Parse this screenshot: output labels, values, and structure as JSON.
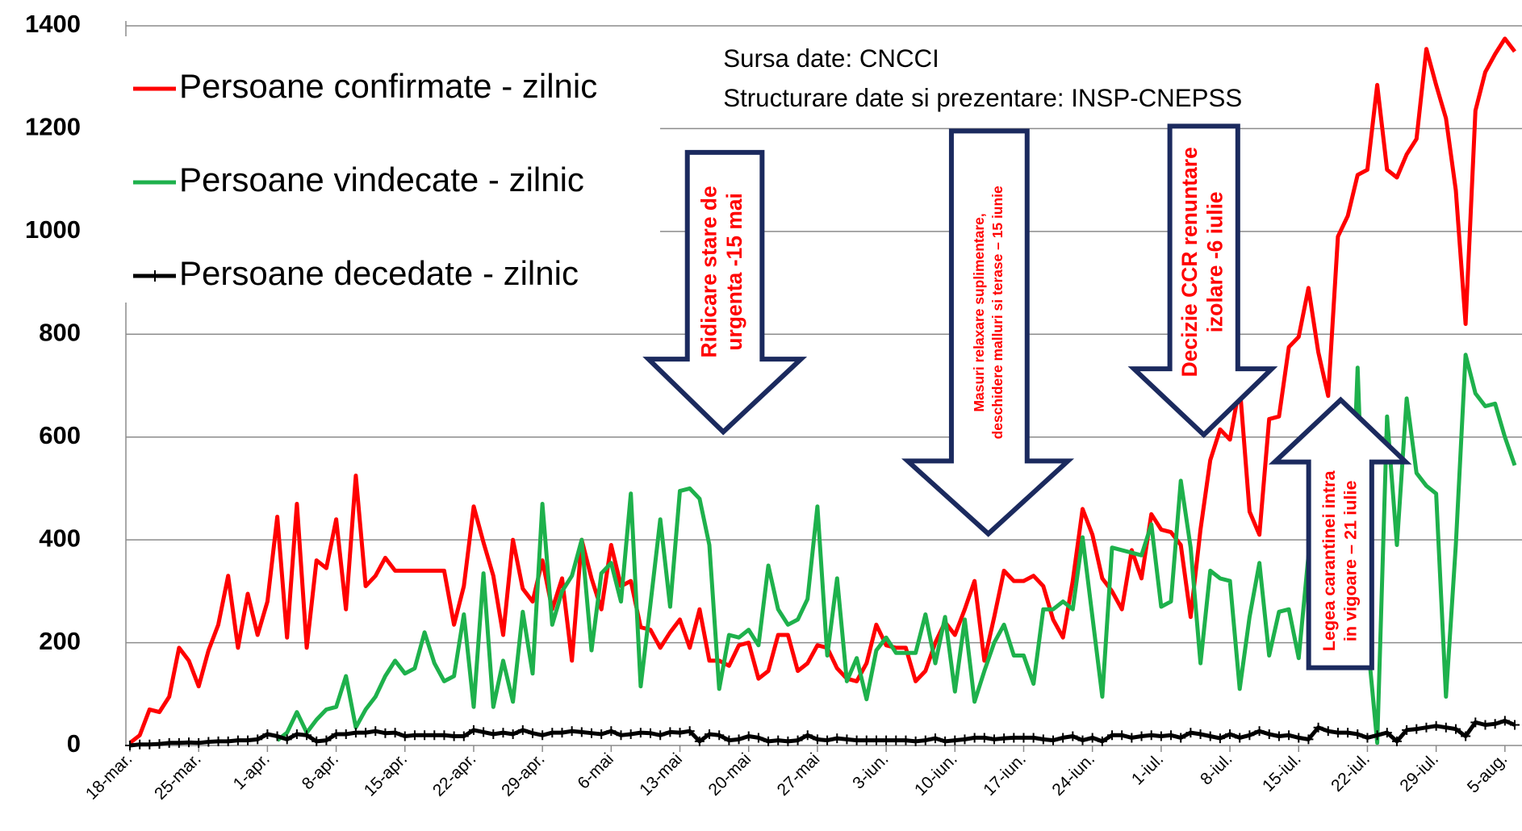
{
  "chart_data": {
    "type": "line",
    "categories": [
      "18-mar.",
      null,
      null,
      null,
      null,
      null,
      null,
      "25-mar.",
      null,
      null,
      null,
      null,
      null,
      null,
      "1-apr.",
      null,
      null,
      null,
      null,
      null,
      null,
      "8-apr.",
      null,
      null,
      null,
      null,
      null,
      null,
      "15-apr.",
      null,
      null,
      null,
      null,
      null,
      null,
      "22-apr.",
      null,
      null,
      null,
      null,
      null,
      null,
      "29-apr.",
      null,
      null,
      null,
      null,
      null,
      null,
      "6-mai",
      null,
      null,
      null,
      null,
      null,
      null,
      "13-mai",
      null,
      null,
      null,
      null,
      null,
      null,
      "20-mai",
      null,
      null,
      null,
      null,
      null,
      null,
      "27-mai",
      null,
      null,
      null,
      null,
      null,
      null,
      "3-iun.",
      null,
      null,
      null,
      null,
      null,
      null,
      "10-iun.",
      null,
      null,
      null,
      null,
      null,
      null,
      "17-iun.",
      null,
      null,
      null,
      null,
      null,
      null,
      "24-iun.",
      null,
      null,
      null,
      null,
      null,
      null,
      "1-iul.",
      null,
      null,
      null,
      null,
      null,
      null,
      "8-iul.",
      null,
      null,
      null,
      null,
      null,
      null,
      "15-iul.",
      null,
      null,
      null,
      null,
      null,
      null,
      "22-iul.",
      null,
      null,
      null,
      null,
      null,
      null,
      "29-iul.",
      null,
      null,
      null,
      null,
      null,
      null,
      "5-aug.",
      null
    ],
    "series": [
      {
        "name": "Persoane confirmate - zilnic",
        "color": "#ff0000",
        "marker": "none",
        "values": [
          5,
          20,
          70,
          65,
          95,
          190,
          165,
          115,
          185,
          235,
          330,
          190,
          295,
          215,
          280,
          445,
          210,
          470,
          190,
          360,
          345,
          440,
          265,
          525,
          310,
          330,
          365,
          340,
          340,
          340,
          340,
          340,
          340,
          235,
          310,
          465,
          395,
          330,
          215,
          400,
          305,
          280,
          360,
          265,
          325,
          165,
          400,
          325,
          265,
          390,
          310,
          320,
          230,
          225,
          190,
          220,
          245,
          190,
          265,
          165,
          165,
          155,
          195,
          200,
          130,
          145,
          215,
          215,
          145,
          160,
          195,
          190,
          150,
          130,
          125,
          160,
          235,
          195,
          190,
          190,
          125,
          145,
          200,
          240,
          215,
          265,
          320,
          165,
          250,
          340,
          320,
          320,
          330,
          310,
          245,
          210,
          320,
          460,
          410,
          325,
          300,
          265,
          380,
          325,
          450,
          420,
          415,
          390,
          250,
          420,
          555,
          615,
          595,
          700,
          455,
          410,
          635,
          640,
          775,
          795,
          890,
          765,
          680,
          990,
          1030,
          1110,
          1120,
          1285,
          1120,
          1105,
          1150,
          1180,
          1355,
          1285,
          1220,
          1080,
          820,
          1235,
          1310,
          1345,
          1375,
          1350
        ]
      },
      {
        "name": "Persoane vindecate - zilnic",
        "color": "#1eb14c",
        "marker": "none",
        "values": [
          null,
          null,
          null,
          null,
          null,
          null,
          null,
          null,
          null,
          null,
          null,
          null,
          null,
          null,
          null,
          10,
          25,
          65,
          25,
          50,
          70,
          75,
          135,
          35,
          70,
          95,
          135,
          165,
          140,
          150,
          220,
          160,
          125,
          135,
          255,
          75,
          335,
          75,
          165,
          85,
          260,
          140,
          470,
          235,
          300,
          330,
          400,
          185,
          335,
          355,
          280,
          490,
          115,
          275,
          440,
          270,
          495,
          500,
          480,
          390,
          110,
          215,
          210,
          225,
          195,
          350,
          265,
          235,
          245,
          285,
          465,
          175,
          325,
          125,
          170,
          90,
          185,
          210,
          180,
          180,
          180,
          255,
          160,
          250,
          105,
          245,
          85,
          145,
          200,
          235,
          175,
          175,
          120,
          265,
          265,
          280,
          265,
          405,
          250,
          95,
          385,
          380,
          375,
          370,
          430,
          270,
          280,
          515,
          385,
          160,
          340,
          325,
          320,
          110,
          250,
          355,
          175,
          260,
          265,
          170,
          370,
          215,
          290,
          605,
          230,
          735,
          210,
          5,
          640,
          390,
          675,
          530,
          505,
          490,
          95,
          390,
          760,
          685,
          660,
          665,
          600,
          545
        ]
      },
      {
        "name": "Persoane decedate - zilnic",
        "color": "#000000",
        "marker": "plus",
        "values": [
          0,
          2,
          2,
          3,
          5,
          5,
          6,
          5,
          7,
          8,
          8,
          10,
          10,
          12,
          22,
          18,
          12,
          22,
          20,
          8,
          10,
          22,
          22,
          25,
          25,
          28,
          24,
          25,
          18,
          20,
          20,
          20,
          20,
          18,
          18,
          30,
          26,
          22,
          25,
          22,
          30,
          24,
          20,
          25,
          25,
          28,
          26,
          24,
          22,
          28,
          20,
          22,
          25,
          24,
          20,
          26,
          25,
          28,
          8,
          22,
          20,
          10,
          12,
          18,
          15,
          8,
          10,
          8,
          10,
          20,
          12,
          10,
          14,
          12,
          10,
          10,
          10,
          10,
          10,
          10,
          8,
          10,
          14,
          8,
          10,
          12,
          15,
          15,
          12,
          14,
          15,
          15,
          15,
          12,
          10,
          15,
          18,
          10,
          15,
          8,
          20,
          20,
          15,
          18,
          20,
          18,
          20,
          15,
          25,
          22,
          18,
          14,
          22,
          15,
          20,
          28,
          22,
          18,
          20,
          15,
          12,
          35,
          28,
          25,
          25,
          22,
          15,
          20,
          25,
          8,
          30,
          32,
          35,
          38,
          35,
          32,
          18,
          45,
          40,
          42,
          48,
          40
        ]
      }
    ],
    "ylim": [
      0,
      1400
    ],
    "yticks": [
      0,
      200,
      400,
      600,
      800,
      1000,
      1200,
      1400
    ],
    "grid": true,
    "legend": "upper left",
    "source_lines": [
      "Sursa date: CNCCI",
      "Structurare date si prezentare: INSP-CNEPSS"
    ],
    "arrows": [
      {
        "lines": [
          "Ridicare stare de",
          "urgenta -15 mai"
        ]
      },
      {
        "lines": [
          "Masuri relaxare suplimentare,",
          "deschidere malluri si terase – 15 iunie"
        ]
      },
      {
        "lines": [
          "Decizie CCR renuntare",
          "izolare -6 iulie"
        ]
      },
      {
        "lines": [
          "Legea carantinei intra",
          "in vigoare – 21 iulie"
        ]
      }
    ]
  }
}
